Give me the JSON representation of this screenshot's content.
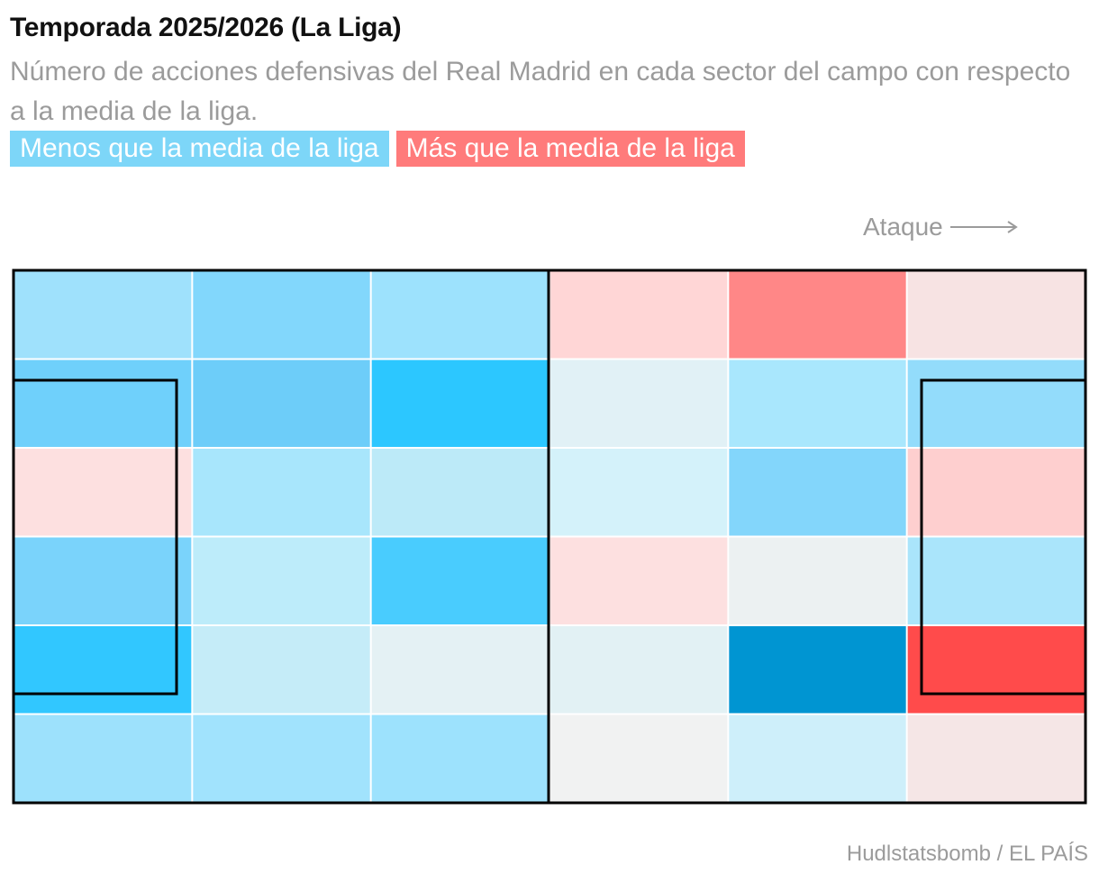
{
  "header": {
    "title": "Temporada 2025/2026 (La Liga)",
    "subtitle": "Número de acciones defensivas del Real Madrid en cada sector del campo con respecto a la media de la liga."
  },
  "legend": {
    "less": {
      "label": "Menos que la media de la liga",
      "color": "#7dd6f8"
    },
    "more": {
      "label": "Más que la media de la liga",
      "color": "#ff7b7b"
    }
  },
  "direction": {
    "label": "Ataque",
    "arrow_icon": "long-right-arrow-icon"
  },
  "footer": {
    "source": "Hudlstatsbomb / EL PAÍS"
  },
  "chart_data": {
    "type": "heatmap",
    "title": "Temporada 2025/2026 (La Liga)",
    "description_metric": "Acciones defensivas del Real Madrid vs. media de la liga",
    "rows": 6,
    "cols": 6,
    "direction": "left-to-right (Ataque)",
    "cells": [
      [
        "#9fe1fc",
        "#82d7fc",
        "#9de2fd",
        "#ffd6d6",
        "#ff8787",
        "#f7e3e3"
      ],
      [
        "#6fd0fb",
        "#6dcdf9",
        "#2cc7ff",
        "#e1f1f6",
        "#a9e7fd",
        "#93dcfb"
      ],
      [
        "#fde0e0",
        "#a8e6fc",
        "#bceaf8",
        "#d4f2fa",
        "#83d6fb",
        "#fecfcf"
      ],
      [
        "#7ad3fb",
        "#bdecfa",
        "#49ccfe",
        "#fde0e0",
        "#ecf1f2",
        "#aae5fb"
      ],
      [
        "#31c7ff",
        "#c5ecf8",
        "#e4f1f4",
        "#e2f1f4",
        "#0095d2",
        "#ff4b4b"
      ],
      [
        "#9de1fc",
        "#a1e3fd",
        "#9de2fd",
        "#f1f2f2",
        "#ceeffa",
        "#f5e6e6"
      ]
    ]
  }
}
